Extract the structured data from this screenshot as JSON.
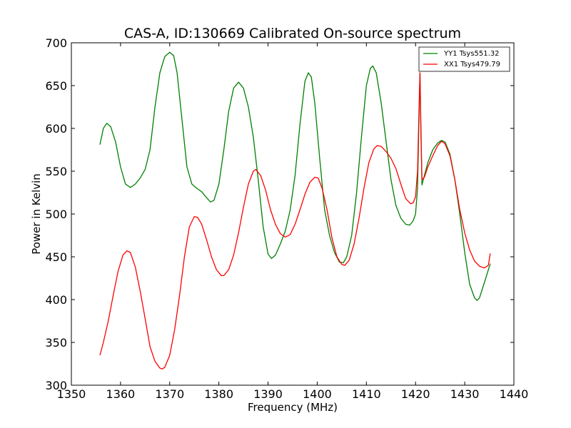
{
  "chart_data": {
    "type": "line",
    "title": "CAS-A, ID:130669 Calibrated On-source spectrum",
    "xlabel": "Frequency (MHz)",
    "ylabel": "Power in Kelvin",
    "xlim": [
      1350,
      1440
    ],
    "ylim": [
      300,
      700
    ],
    "xticks": [
      "1350",
      "1360",
      "1370",
      "1380",
      "1390",
      "1400",
      "1410",
      "1420",
      "1430",
      "1440"
    ],
    "yticks": [
      "300",
      "350",
      "400",
      "450",
      "500",
      "550",
      "600",
      "650",
      "700"
    ],
    "grid": false,
    "legend_position": "top-right",
    "series": [
      {
        "name": "YY1 Tsys551.32",
        "color": "#008000",
        "points": [
          [
            1355.8,
            581
          ],
          [
            1356.5,
            600
          ],
          [
            1357.2,
            606
          ],
          [
            1358.0,
            602
          ],
          [
            1359.0,
            584
          ],
          [
            1360.0,
            555
          ],
          [
            1361.0,
            535
          ],
          [
            1362.0,
            531
          ],
          [
            1363.0,
            535
          ],
          [
            1364.0,
            542
          ],
          [
            1365.0,
            552
          ],
          [
            1366.0,
            575
          ],
          [
            1367.0,
            625
          ],
          [
            1368.0,
            665
          ],
          [
            1369.0,
            684
          ],
          [
            1370.0,
            689
          ],
          [
            1370.8,
            685
          ],
          [
            1371.5,
            665
          ],
          [
            1372.5,
            610
          ],
          [
            1373.5,
            555
          ],
          [
            1374.5,
            535
          ],
          [
            1375.5,
            530
          ],
          [
            1376.5,
            526
          ],
          [
            1377.5,
            519
          ],
          [
            1378.3,
            514
          ],
          [
            1379.0,
            516
          ],
          [
            1380.0,
            535
          ],
          [
            1381.0,
            575
          ],
          [
            1382.0,
            620
          ],
          [
            1383.0,
            647
          ],
          [
            1384.0,
            654
          ],
          [
            1385.0,
            647
          ],
          [
            1386.0,
            625
          ],
          [
            1387.0,
            590
          ],
          [
            1388.0,
            540
          ],
          [
            1389.0,
            485
          ],
          [
            1390.0,
            453
          ],
          [
            1390.7,
            448
          ],
          [
            1391.5,
            452
          ],
          [
            1392.5,
            465
          ],
          [
            1393.5,
            480
          ],
          [
            1394.5,
            505
          ],
          [
            1395.5,
            545
          ],
          [
            1396.5,
            605
          ],
          [
            1397.5,
            655
          ],
          [
            1398.2,
            665
          ],
          [
            1398.8,
            660
          ],
          [
            1399.5,
            630
          ],
          [
            1400.5,
            565
          ],
          [
            1401.5,
            505
          ],
          [
            1402.5,
            475
          ],
          [
            1403.5,
            455
          ],
          [
            1404.5,
            444
          ],
          [
            1405.3,
            443
          ],
          [
            1406.0,
            450
          ],
          [
            1407.0,
            475
          ],
          [
            1408.0,
            525
          ],
          [
            1409.0,
            590
          ],
          [
            1410.0,
            650
          ],
          [
            1410.8,
            670
          ],
          [
            1411.3,
            673
          ],
          [
            1412.0,
            665
          ],
          [
            1413.0,
            630
          ],
          [
            1414.0,
            585
          ],
          [
            1415.0,
            540
          ],
          [
            1416.0,
            510
          ],
          [
            1417.0,
            495
          ],
          [
            1418.0,
            488
          ],
          [
            1418.8,
            487
          ],
          [
            1419.5,
            492
          ],
          [
            1420.0,
            500
          ],
          [
            1420.4,
            530
          ],
          [
            1420.7,
            610
          ],
          [
            1420.9,
            665
          ],
          [
            1421.1,
            600
          ],
          [
            1421.3,
            534
          ],
          [
            1421.8,
            545
          ],
          [
            1422.5,
            560
          ],
          [
            1423.5,
            575
          ],
          [
            1424.5,
            583
          ],
          [
            1425.3,
            586
          ],
          [
            1426.0,
            584
          ],
          [
            1427.0,
            570
          ],
          [
            1428.0,
            540
          ],
          [
            1429.0,
            500
          ],
          [
            1430.0,
            455
          ],
          [
            1431.0,
            418
          ],
          [
            1432.0,
            402
          ],
          [
            1432.5,
            399
          ],
          [
            1433.0,
            402
          ],
          [
            1434.0,
            420
          ],
          [
            1435.2,
            442
          ]
        ]
      },
      {
        "name": "XX1 Tsys479.79",
        "color": "#ff0000",
        "points": [
          [
            1355.8,
            335
          ],
          [
            1356.5,
            350
          ],
          [
            1357.5,
            375
          ],
          [
            1358.5,
            405
          ],
          [
            1359.5,
            433
          ],
          [
            1360.5,
            452
          ],
          [
            1361.3,
            457
          ],
          [
            1362.0,
            455
          ],
          [
            1363.0,
            438
          ],
          [
            1364.0,
            410
          ],
          [
            1365.0,
            378
          ],
          [
            1366.0,
            345
          ],
          [
            1367.0,
            328
          ],
          [
            1368.0,
            320
          ],
          [
            1368.5,
            319
          ],
          [
            1369.0,
            321
          ],
          [
            1370.0,
            335
          ],
          [
            1371.0,
            365
          ],
          [
            1372.0,
            405
          ],
          [
            1373.0,
            450
          ],
          [
            1374.0,
            485
          ],
          [
            1375.0,
            497
          ],
          [
            1375.7,
            496
          ],
          [
            1376.5,
            488
          ],
          [
            1377.5,
            470
          ],
          [
            1378.5,
            450
          ],
          [
            1379.5,
            435
          ],
          [
            1380.5,
            428
          ],
          [
            1381.0,
            428
          ],
          [
            1382.0,
            435
          ],
          [
            1383.0,
            452
          ],
          [
            1384.0,
            478
          ],
          [
            1385.0,
            508
          ],
          [
            1386.0,
            535
          ],
          [
            1387.0,
            550
          ],
          [
            1387.5,
            552
          ],
          [
            1388.5,
            545
          ],
          [
            1389.5,
            528
          ],
          [
            1390.5,
            505
          ],
          [
            1391.5,
            488
          ],
          [
            1392.5,
            477
          ],
          [
            1393.5,
            473
          ],
          [
            1394.5,
            476
          ],
          [
            1395.5,
            488
          ],
          [
            1396.5,
            505
          ],
          [
            1397.5,
            523
          ],
          [
            1398.5,
            537
          ],
          [
            1399.5,
            543
          ],
          [
            1400.2,
            542
          ],
          [
            1401.0,
            530
          ],
          [
            1402.0,
            505
          ],
          [
            1403.0,
            472
          ],
          [
            1404.0,
            450
          ],
          [
            1405.0,
            441
          ],
          [
            1405.6,
            440
          ],
          [
            1406.5,
            446
          ],
          [
            1407.5,
            465
          ],
          [
            1408.5,
            495
          ],
          [
            1409.5,
            530
          ],
          [
            1410.5,
            560
          ],
          [
            1411.5,
            576
          ],
          [
            1412.2,
            580
          ],
          [
            1413.0,
            579
          ],
          [
            1414.0,
            573
          ],
          [
            1415.0,
            565
          ],
          [
            1416.0,
            553
          ],
          [
            1417.0,
            535
          ],
          [
            1418.0,
            518
          ],
          [
            1419.0,
            512
          ],
          [
            1419.5,
            513
          ],
          [
            1420.0,
            520
          ],
          [
            1420.4,
            550
          ],
          [
            1420.7,
            620
          ],
          [
            1420.9,
            665
          ],
          [
            1421.1,
            590
          ],
          [
            1421.3,
            540
          ],
          [
            1421.8,
            543
          ],
          [
            1422.5,
            555
          ],
          [
            1423.5,
            568
          ],
          [
            1424.5,
            580
          ],
          [
            1425.3,
            585
          ],
          [
            1426.0,
            582
          ],
          [
            1427.0,
            568
          ],
          [
            1428.0,
            540
          ],
          [
            1429.0,
            505
          ],
          [
            1430.0,
            478
          ],
          [
            1431.0,
            458
          ],
          [
            1432.0,
            445
          ],
          [
            1433.0,
            439
          ],
          [
            1434.0,
            437
          ],
          [
            1434.8,
            440
          ],
          [
            1435.2,
            454
          ]
        ]
      }
    ]
  }
}
